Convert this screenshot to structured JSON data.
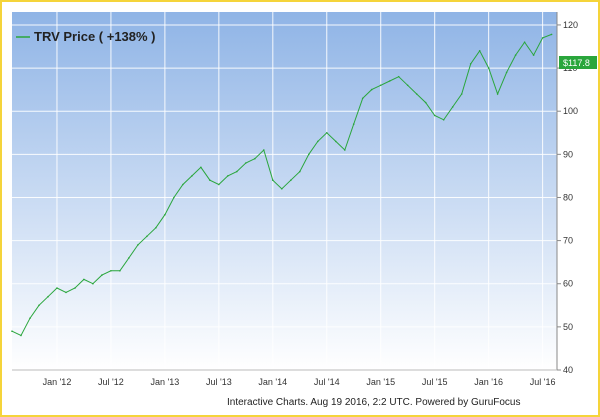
{
  "chart_data": {
    "type": "line",
    "legend": {
      "label": "TRV Price ( +138% )",
      "placement": "top-left"
    },
    "current_value_label": "$117.8",
    "credit": "Interactive Charts. Aug 19 2016, 2:2 UTC. Powered by GuruFocus",
    "x_ticks": [
      "Jan '12",
      "Jul '12",
      "Jan '13",
      "Jul '13",
      "Jan '14",
      "Jul '14",
      "Jan '15",
      "Jul '15",
      "Jan '16",
      "Jul '16"
    ],
    "y_ticks": [
      40,
      50,
      60,
      70,
      80,
      90,
      100,
      110,
      120
    ],
    "ylim": [
      40,
      123
    ],
    "xlim": [
      "2011-08",
      "2016-08"
    ],
    "grid": true,
    "series": [
      {
        "name": "TRV Price",
        "color": "#2aa63c",
        "x": [
          "2011-08",
          "2011-09",
          "2011-10",
          "2011-11",
          "2011-12",
          "2012-01",
          "2012-02",
          "2012-03",
          "2012-04",
          "2012-05",
          "2012-06",
          "2012-07",
          "2012-08",
          "2012-09",
          "2012-10",
          "2012-11",
          "2012-12",
          "2013-01",
          "2013-02",
          "2013-03",
          "2013-04",
          "2013-05",
          "2013-06",
          "2013-07",
          "2013-08",
          "2013-09",
          "2013-10",
          "2013-11",
          "2013-12",
          "2014-01",
          "2014-02",
          "2014-03",
          "2014-04",
          "2014-05",
          "2014-06",
          "2014-07",
          "2014-08",
          "2014-09",
          "2014-10",
          "2014-11",
          "2014-12",
          "2015-01",
          "2015-02",
          "2015-03",
          "2015-04",
          "2015-05",
          "2015-06",
          "2015-07",
          "2015-08",
          "2015-09",
          "2015-10",
          "2015-11",
          "2015-12",
          "2016-01",
          "2016-02",
          "2016-03",
          "2016-04",
          "2016-05",
          "2016-06",
          "2016-07",
          "2016-08"
        ],
        "values": [
          49,
          48,
          52,
          55,
          57,
          59,
          58,
          59,
          61,
          60,
          62,
          63,
          63,
          66,
          69,
          71,
          73,
          76,
          80,
          83,
          85,
          87,
          84,
          83,
          85,
          86,
          88,
          89,
          91,
          84,
          82,
          84,
          86,
          90,
          93,
          95,
          93,
          91,
          97,
          103,
          105,
          106,
          107,
          108,
          106,
          104,
          102,
          99,
          98,
          101,
          104,
          111,
          114,
          110,
          104,
          109,
          113,
          116,
          113,
          117,
          117.8
        ]
      }
    ]
  }
}
